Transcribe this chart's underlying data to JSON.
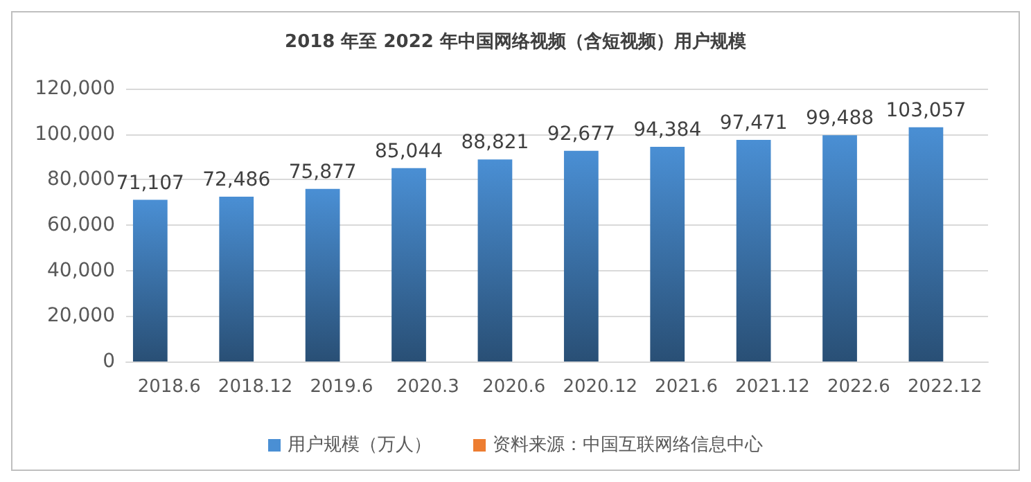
{
  "chart_data": {
    "type": "bar",
    "title": "2018 年至 2022 年中国网络视频（含短视频）用户规模",
    "categories": [
      "2018.6",
      "2018.12",
      "2019.6",
      "2020.3",
      "2020.6",
      "2020.12",
      "2021.6",
      "2021.12",
      "2022.6",
      "2022.12"
    ],
    "series": [
      {
        "name": "用户规模（万人）",
        "color": "#4a8fd4",
        "values": [
          71107,
          72486,
          75877,
          85044,
          88821,
          92677,
          94384,
          97471,
          99488,
          103057
        ],
        "value_labels": [
          "71,107",
          "72,486",
          "75,877",
          "85,044",
          "88,821",
          "92,677",
          "94,384",
          "97,471",
          "99,488",
          "103,057"
        ]
      },
      {
        "name": "资料来源：中国互联网络信息中心",
        "color": "#ed7d31",
        "values": [
          null,
          null,
          null,
          null,
          null,
          null,
          null,
          null,
          null,
          null
        ]
      }
    ],
    "ylim": [
      0,
      120000
    ],
    "yticks": [
      0,
      {
        "value": 20000,
        "label": "20,000"
      },
      {
        "value": 40000,
        "label": "40,000"
      },
      {
        "value": 60000,
        "label": "60,000"
      },
      {
        "value": 80000,
        "label": "80,000"
      },
      {
        "value": 100000,
        "label": "100,000"
      },
      {
        "value": 120000,
        "label": "120,000"
      }
    ],
    "grid": "y",
    "legend": "bottom"
  }
}
